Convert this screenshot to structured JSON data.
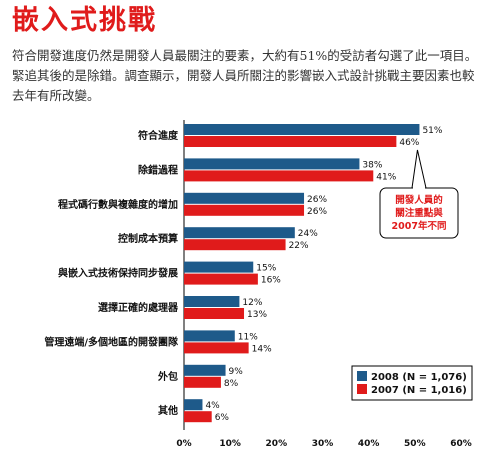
{
  "header": {
    "title": "嵌入式挑戰",
    "intro": "符合開發進度仍然是開發人員最關注的要素，大約有51%的受訪者勾選了此一項目。緊追其後的是除錯。調查顯示，開發人員所關注的影響嵌入式設計挑戰主要因素也較去年有所改變。"
  },
  "chart_data": {
    "type": "bar",
    "orientation": "horizontal",
    "categories": [
      "符合進度",
      "除錯過程",
      "程式碼行數與複雜度的增加",
      "控制成本預算",
      "與嵌入式技術保持同步發展",
      "選擇正確的處理器",
      "管理遠端/多個地區的開發團隊",
      "外包",
      "其他"
    ],
    "series": [
      {
        "name": "2008 (N = 1,076)",
        "color": "#1e5a8a",
        "values": [
          51,
          38,
          26,
          24,
          15,
          12,
          11,
          9,
          4
        ]
      },
      {
        "name": "2007 (N = 1,016)",
        "color": "#e01b1b",
        "values": [
          46,
          41,
          26,
          22,
          16,
          13,
          14,
          8,
          6
        ]
      }
    ],
    "xlim": [
      0,
      60
    ],
    "xticks": [
      "0%",
      "10%",
      "20%",
      "30%",
      "40%",
      "50%",
      "60%"
    ],
    "value_suffix": "%",
    "grid": false,
    "legend_position": "bottom-right",
    "annotation": {
      "lines": [
        "開發人員的",
        "關注重點與",
        "2007年不同"
      ],
      "color": "#e01b1b",
      "points_to": "除錯過程"
    }
  }
}
